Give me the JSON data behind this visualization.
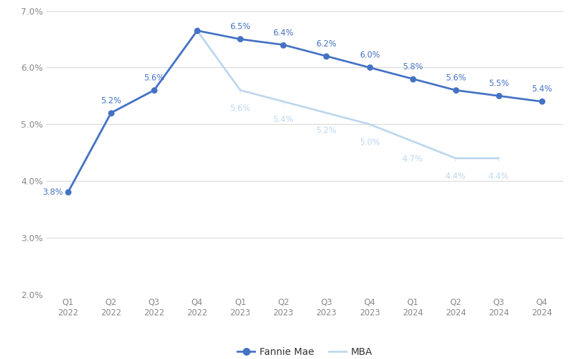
{
  "categories": [
    "Q1\n2022",
    "Q2\n2022",
    "Q3\n2022",
    "Q4\n2022",
    "Q1\n2023",
    "Q2\n2023",
    "Q3\n2023",
    "Q4\n2023",
    "Q1\n2024",
    "Q2\n2024",
    "Q3\n2024",
    "Q4\n2024"
  ],
  "fannie_mae": [
    3.8,
    5.2,
    5.6,
    6.65,
    6.5,
    6.4,
    6.2,
    6.0,
    5.8,
    5.6,
    5.5,
    5.4
  ],
  "mba": [
    3.8,
    5.2,
    5.6,
    6.65,
    5.6,
    5.4,
    5.2,
    5.0,
    4.7,
    4.4,
    4.4,
    null
  ],
  "fannie_mae_color": "#4472C4",
  "mba_color": "#BDD7EE",
  "background_color": "#FFFFFF",
  "grid_color": "#D9D9D9",
  "ylim": [
    2.0,
    7.0
  ],
  "yticks": [
    2.0,
    3.0,
    4.0,
    5.0,
    6.0,
    7.0
  ],
  "legend_fannie": "Fannie Mae",
  "legend_mba": "MBA",
  "fm_label_positions": [
    [
      0,
      "3.8%",
      "left",
      -5,
      0
    ],
    [
      1,
      "5.2%",
      "center",
      0,
      8
    ],
    [
      2,
      "5.6%",
      "center",
      0,
      8
    ],
    [
      4,
      "6.5%",
      "center",
      0,
      8
    ],
    [
      5,
      "6.4%",
      "center",
      0,
      8
    ],
    [
      6,
      "6.2%",
      "center",
      0,
      8
    ],
    [
      7,
      "6.0%",
      "center",
      0,
      8
    ],
    [
      8,
      "5.8%",
      "center",
      0,
      8
    ],
    [
      9,
      "5.6%",
      "center",
      0,
      8
    ],
    [
      10,
      "5.5%",
      "center",
      0,
      8
    ],
    [
      11,
      "5.4%",
      "center",
      0,
      8
    ]
  ],
  "mba_label_positions": [
    [
      4,
      "5.6%",
      0,
      -14
    ],
    [
      5,
      "5.4%",
      0,
      -14
    ],
    [
      6,
      "5.2%",
      0,
      -14
    ],
    [
      7,
      "5.0%",
      0,
      -14
    ],
    [
      8,
      "4.7%",
      0,
      -14
    ],
    [
      9,
      "4.4%",
      0,
      -14
    ],
    [
      10,
      "4.4%",
      0,
      -14
    ]
  ]
}
